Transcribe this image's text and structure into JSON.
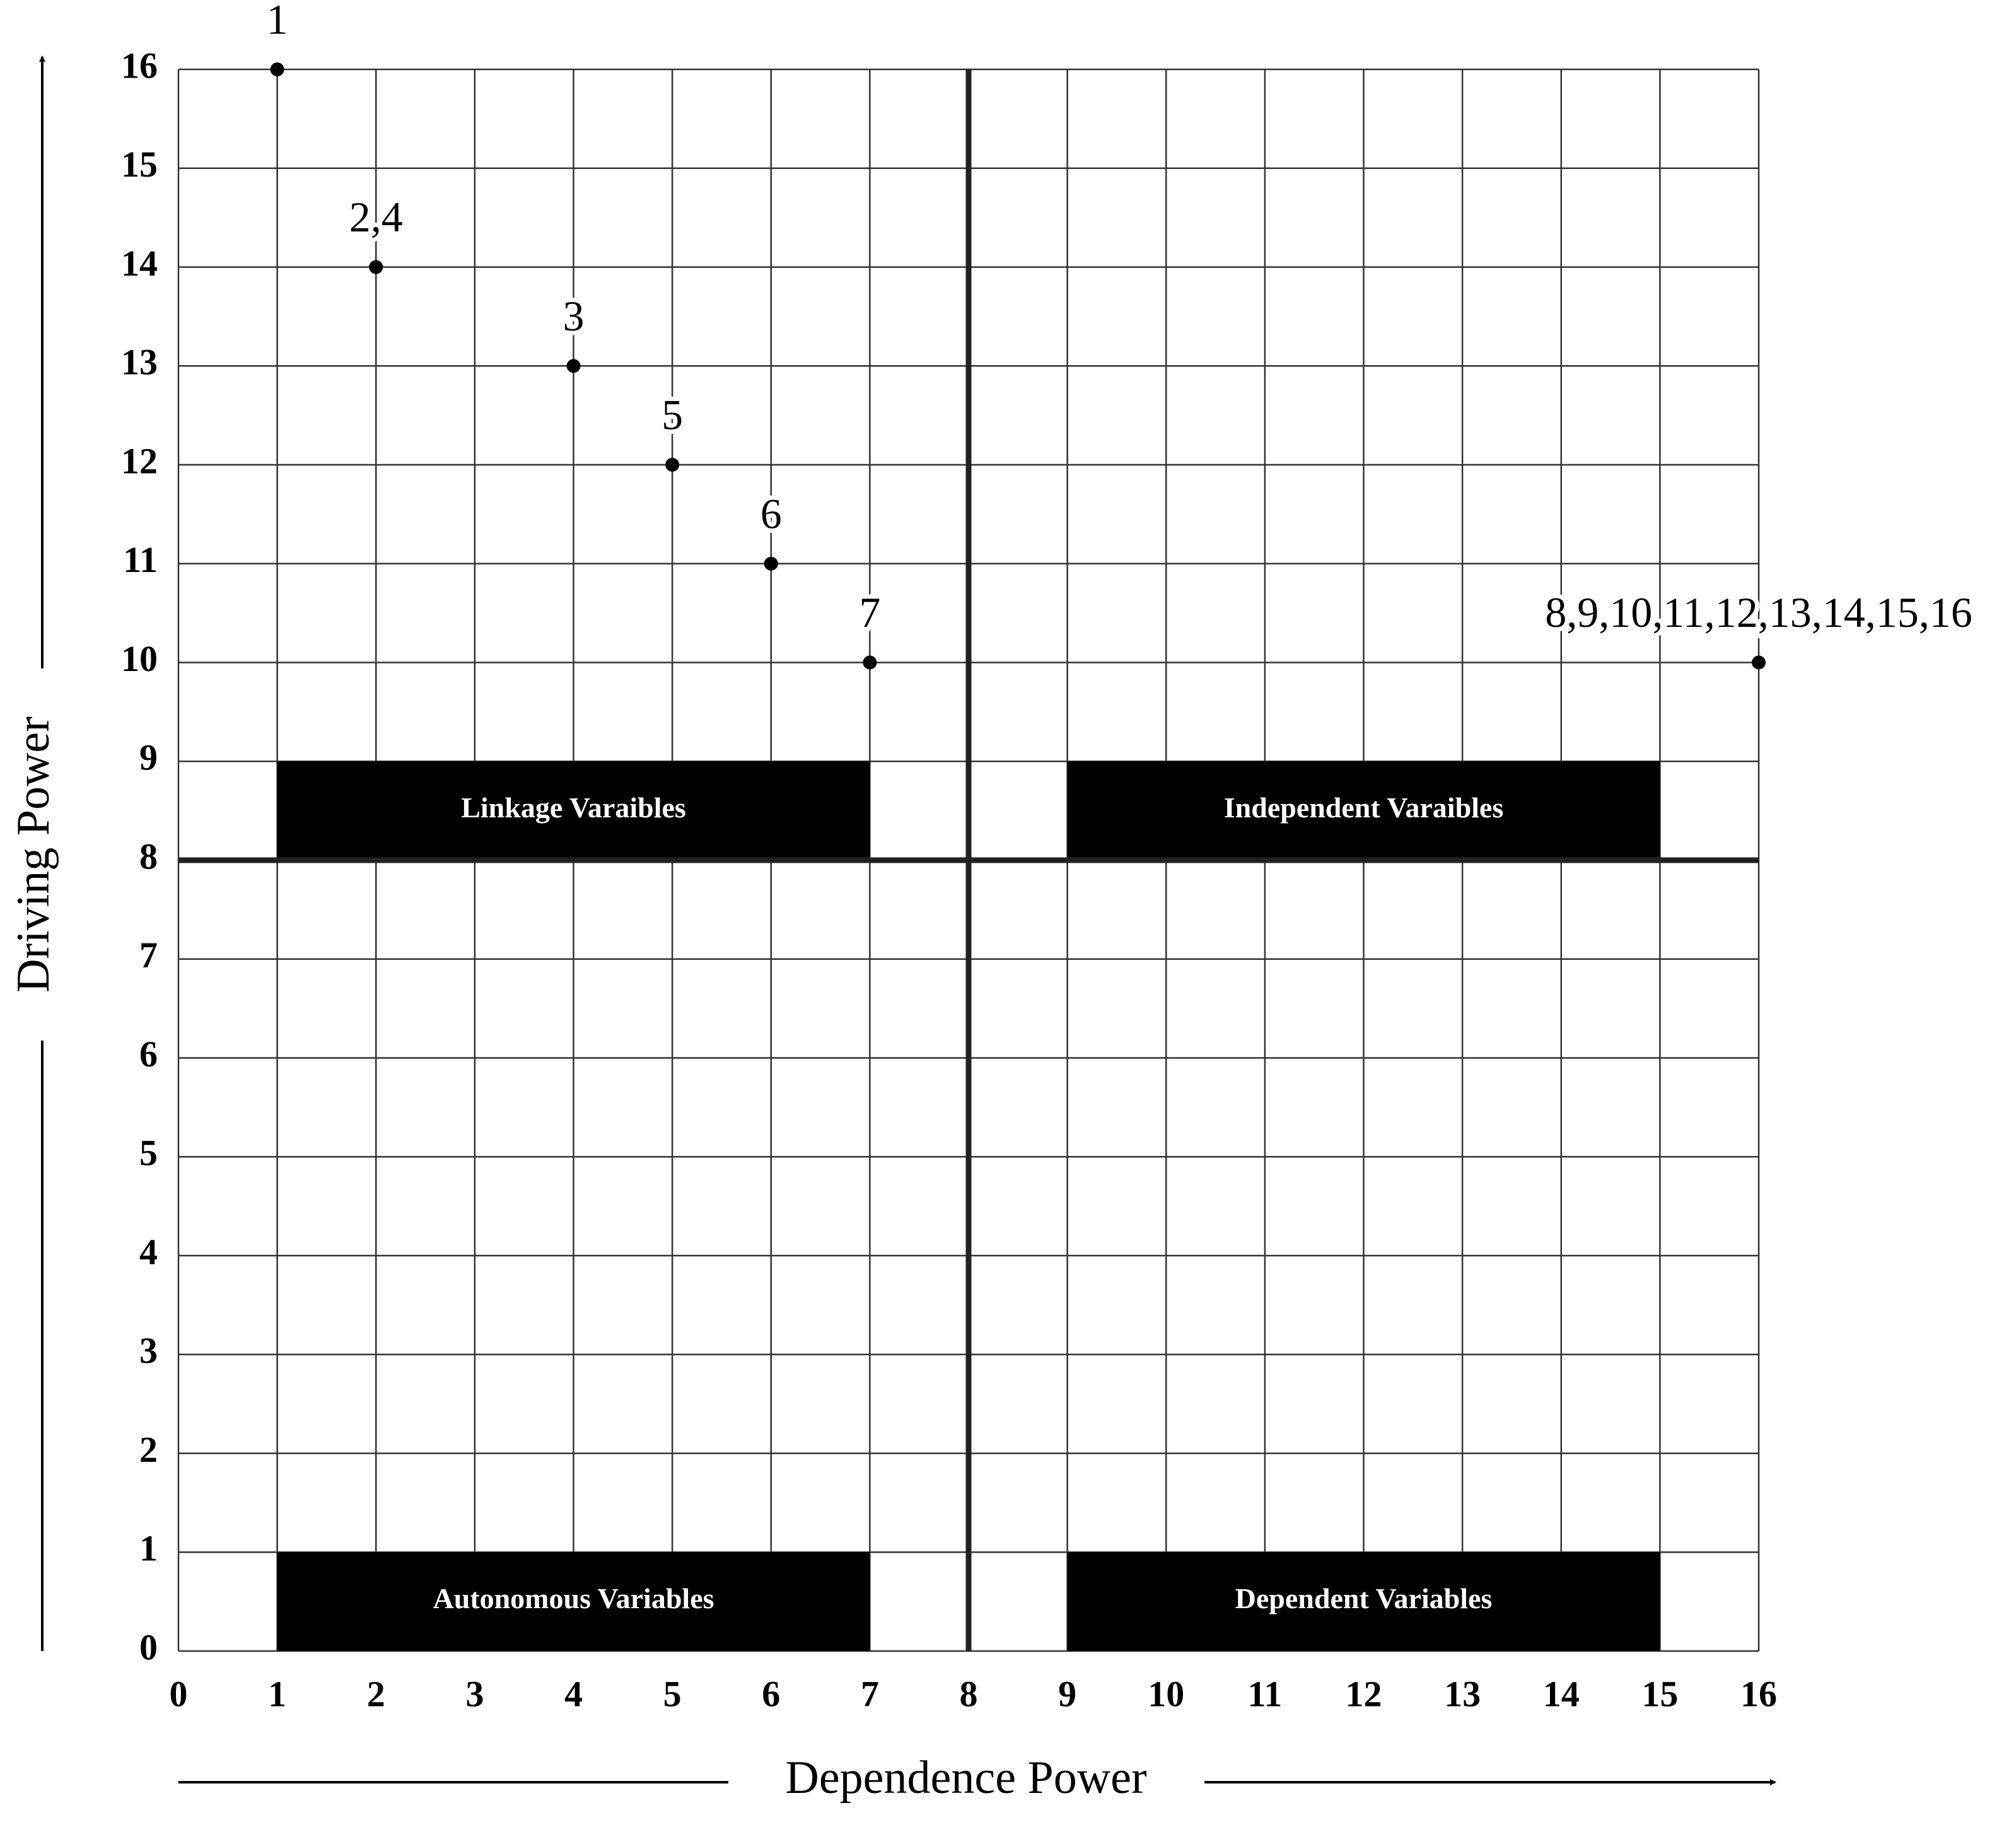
{
  "chart_data": {
    "type": "scatter",
    "x_label": "Dependence Power",
    "y_label": "Driving Power",
    "xlim": [
      0,
      16
    ],
    "ylim": [
      0,
      16
    ],
    "xticks": [
      0,
      1,
      2,
      3,
      4,
      5,
      6,
      7,
      8,
      9,
      10,
      11,
      12,
      13,
      14,
      15,
      16
    ],
    "yticks": [
      0,
      1,
      2,
      3,
      4,
      5,
      6,
      7,
      8,
      9,
      10,
      11,
      12,
      13,
      14,
      15,
      16
    ],
    "grid": true,
    "color": "#000000",
    "x": [
      1,
      2,
      4,
      5,
      6,
      7,
      16
    ],
    "values": [
      16,
      14,
      13,
      12,
      11,
      10,
      10
    ],
    "point_labels": [
      "1",
      "2,4",
      "3",
      "5",
      "6",
      "7",
      "8,9,10,11,12,13,14,15,16"
    ],
    "dividers": {
      "x": 8,
      "y": 8
    },
    "regions": [
      {
        "label": "Linkage Varaibles",
        "x": [
          1,
          7
        ],
        "y": [
          8,
          9
        ]
      },
      {
        "label": "Independent Varaibles",
        "x": [
          9,
          15
        ],
        "y": [
          8,
          9
        ]
      },
      {
        "label": "Autonomous Variables",
        "x": [
          1,
          7
        ],
        "y": [
          0,
          1
        ]
      },
      {
        "label": "Dependent Variables",
        "x": [
          9,
          15
        ],
        "y": [
          0,
          1
        ]
      }
    ]
  }
}
